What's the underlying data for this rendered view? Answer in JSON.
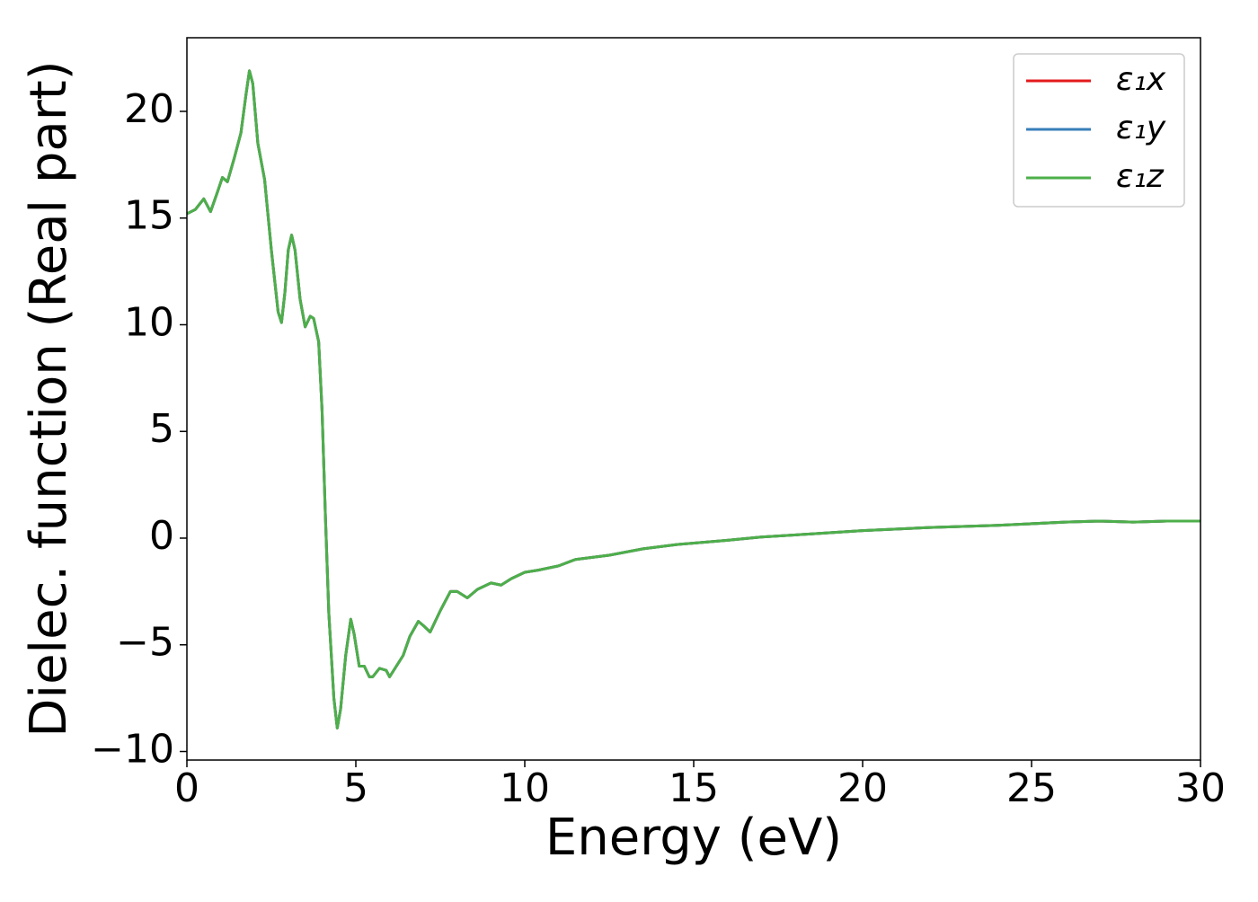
{
  "chart_data": {
    "type": "line",
    "xlabel": "Energy (eV)",
    "ylabel": "Dielec. function (Real part)",
    "x": [
      0,
      0.25,
      0.5,
      0.7,
      0.9,
      1.05,
      1.2,
      1.4,
      1.6,
      1.75,
      1.85,
      1.95,
      2.1,
      2.3,
      2.5,
      2.7,
      2.8,
      2.9,
      3.0,
      3.1,
      3.2,
      3.35,
      3.5,
      3.65,
      3.75,
      3.9,
      4.0,
      4.1,
      4.2,
      4.35,
      4.45,
      4.55,
      4.7,
      4.85,
      4.95,
      5.1,
      5.25,
      5.4,
      5.5,
      5.7,
      5.9,
      6.0,
      6.2,
      6.4,
      6.6,
      6.85,
      7.0,
      7.2,
      7.5,
      7.8,
      8.0,
      8.3,
      8.6,
      9.0,
      9.3,
      9.6,
      10.0,
      10.4,
      11.0,
      11.5,
      12.5,
      13.5,
      14.5,
      16,
      17,
      18.5,
      20,
      22,
      24,
      26,
      27,
      28,
      29,
      30
    ],
    "series": [
      {
        "name": "ε₁x",
        "color": "#e41a1c",
        "values": [
          15.2,
          15.4,
          15.9,
          15.3,
          16.2,
          16.9,
          16.7,
          17.8,
          19.0,
          20.8,
          21.9,
          21.3,
          18.5,
          16.8,
          13.5,
          10.6,
          10.1,
          11.5,
          13.5,
          14.2,
          13.5,
          11.2,
          9.9,
          10.4,
          10.3,
          9.2,
          6.0,
          1.0,
          -3.5,
          -7.5,
          -8.9,
          -8.0,
          -5.5,
          -3.8,
          -4.5,
          -6.0,
          -6.0,
          -6.5,
          -6.5,
          -6.1,
          -6.2,
          -6.5,
          -6.0,
          -5.5,
          -4.6,
          -3.9,
          -4.1,
          -4.4,
          -3.4,
          -2.5,
          -2.5,
          -2.8,
          -2.4,
          -2.1,
          -2.2,
          -1.9,
          -1.6,
          -1.5,
          -1.3,
          -1.0,
          -0.8,
          -0.5,
          -0.3,
          -0.1,
          0.05,
          0.2,
          0.35,
          0.5,
          0.6,
          0.75,
          0.8,
          0.75,
          0.8,
          0.8
        ]
      },
      {
        "name": "ε₁y",
        "color": "#377eb8",
        "values": [
          15.2,
          15.4,
          15.9,
          15.3,
          16.2,
          16.9,
          16.7,
          17.8,
          19.0,
          20.8,
          21.9,
          21.3,
          18.5,
          16.8,
          13.5,
          10.6,
          10.1,
          11.5,
          13.5,
          14.2,
          13.5,
          11.2,
          9.9,
          10.4,
          10.3,
          9.2,
          6.0,
          1.0,
          -3.5,
          -7.5,
          -8.9,
          -8.0,
          -5.5,
          -3.8,
          -4.5,
          -6.0,
          -6.0,
          -6.5,
          -6.5,
          -6.1,
          -6.2,
          -6.5,
          -6.0,
          -5.5,
          -4.6,
          -3.9,
          -4.1,
          -4.4,
          -3.4,
          -2.5,
          -2.5,
          -2.8,
          -2.4,
          -2.1,
          -2.2,
          -1.9,
          -1.6,
          -1.5,
          -1.3,
          -1.0,
          -0.8,
          -0.5,
          -0.3,
          -0.1,
          0.05,
          0.2,
          0.35,
          0.5,
          0.6,
          0.75,
          0.8,
          0.75,
          0.8,
          0.8
        ]
      },
      {
        "name": "ε₁z",
        "color": "#4daf4a",
        "values": [
          15.2,
          15.4,
          15.9,
          15.3,
          16.2,
          16.9,
          16.7,
          17.8,
          19.0,
          20.8,
          21.9,
          21.3,
          18.5,
          16.8,
          13.5,
          10.6,
          10.1,
          11.5,
          13.5,
          14.2,
          13.5,
          11.2,
          9.9,
          10.4,
          10.3,
          9.2,
          6.0,
          1.0,
          -3.5,
          -7.5,
          -8.9,
          -8.0,
          -5.5,
          -3.8,
          -4.5,
          -6.0,
          -6.0,
          -6.5,
          -6.5,
          -6.1,
          -6.2,
          -6.5,
          -6.0,
          -5.5,
          -4.6,
          -3.9,
          -4.1,
          -4.4,
          -3.4,
          -2.5,
          -2.5,
          -2.8,
          -2.4,
          -2.1,
          -2.2,
          -1.9,
          -1.6,
          -1.5,
          -1.3,
          -1.0,
          -0.8,
          -0.5,
          -0.3,
          -0.1,
          0.05,
          0.2,
          0.35,
          0.5,
          0.6,
          0.75,
          0.8,
          0.75,
          0.8,
          0.8
        ]
      }
    ],
    "xlim": [
      0,
      30
    ],
    "xticks": [
      0,
      5,
      10,
      15,
      20,
      25,
      30
    ],
    "ylim": [
      -10.4,
      23.45
    ],
    "yticks": [
      {
        "value": -10,
        "label": "−10"
      },
      {
        "value": -5,
        "label": "−5"
      },
      0,
      5,
      10,
      15,
      20
    ],
    "legend": "upper right",
    "grid": false
  }
}
